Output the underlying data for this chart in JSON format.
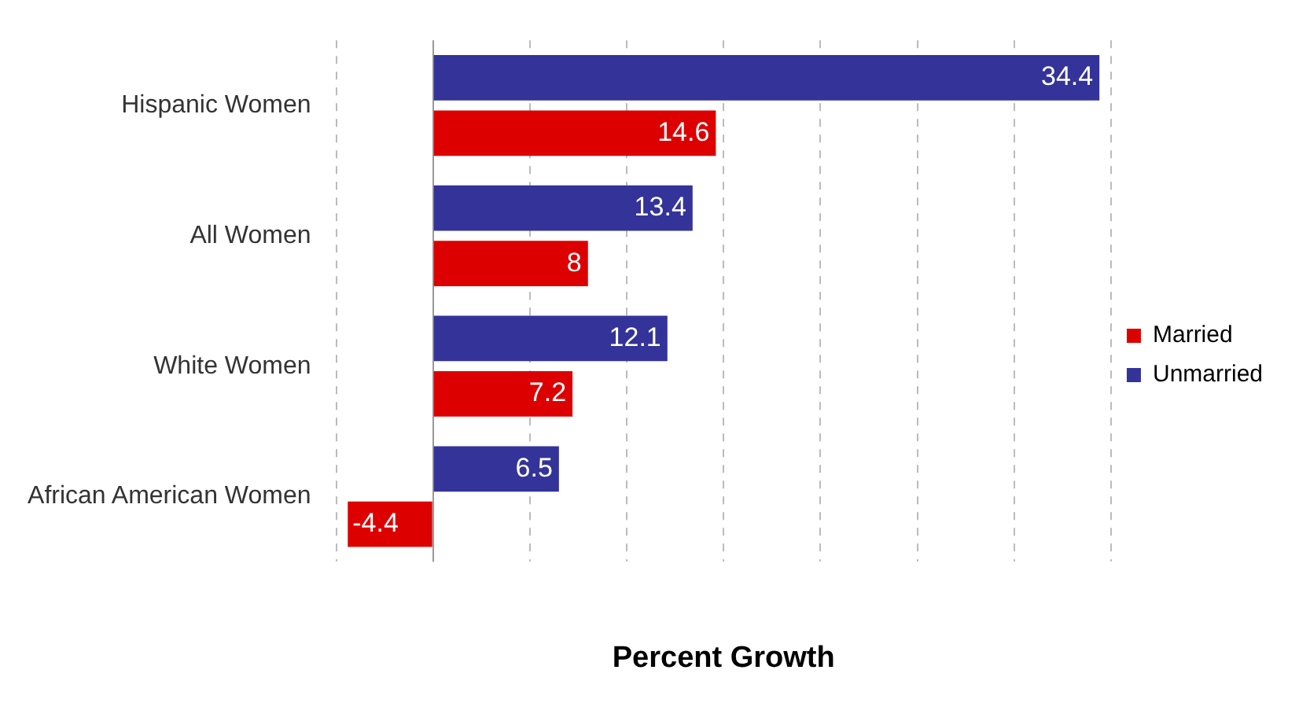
{
  "chart_data": {
    "type": "bar",
    "orientation": "horizontal",
    "xlabel": "Percent Growth",
    "categories": [
      "Hispanic Women",
      "All Women",
      "White Women",
      "African American Women"
    ],
    "series": [
      {
        "name": "Unmarried",
        "color": "#333399",
        "values": [
          34.4,
          13.4,
          12.1,
          6.5
        ]
      },
      {
        "name": "Married",
        "color": "#dd0000",
        "values": [
          14.6,
          8,
          7.2,
          -4.4
        ]
      }
    ],
    "xlim": [
      -5,
      35
    ],
    "xticks": [
      -5,
      0,
      5,
      10,
      15,
      20,
      25,
      30,
      35
    ],
    "tick_labels": "y",
    "grid": "x",
    "legend": "right",
    "data_labels": true
  }
}
